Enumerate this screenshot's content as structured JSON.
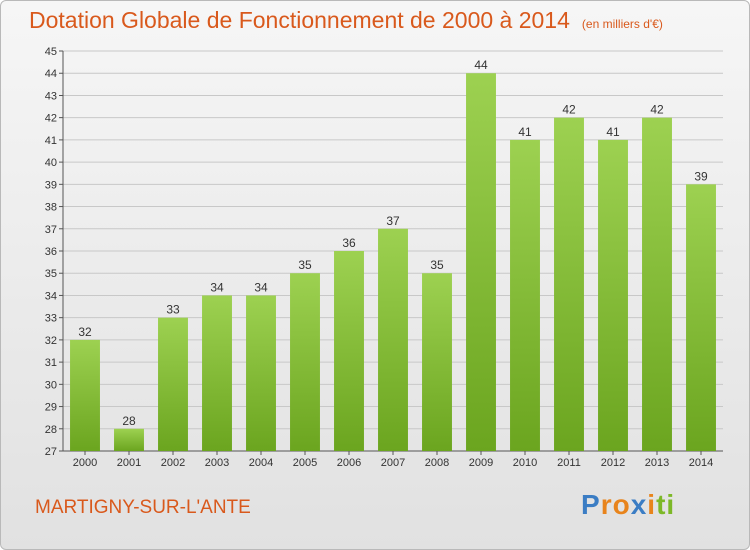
{
  "header": {
    "title": "Dotation Globale de Fonctionnement de 2000 à 2014",
    "unit": "(en milliers d'€)"
  },
  "footer": {
    "commune": "MARTIGNY-SUR-L'ANTE",
    "brand_letters": [
      "P",
      "r",
      "o",
      "x",
      "i",
      "t",
      "i"
    ],
    "brand_colors": [
      "#3b7dc4",
      "#e8841c",
      "#e8841c",
      "#3b7dc4",
      "#e8841c",
      "#7db828",
      "#7db828"
    ]
  },
  "colors": {
    "accent": "#d9591c",
    "bar_light": "#9dd151",
    "bar_dark": "#6ba51f",
    "grid": "#c8c8c8"
  },
  "chart_data": {
    "type": "bar",
    "categories": [
      "2000",
      "2001",
      "2002",
      "2003",
      "2004",
      "2005",
      "2006",
      "2007",
      "2008",
      "2009",
      "2010",
      "2011",
      "2012",
      "2013",
      "2014"
    ],
    "values": [
      32,
      28,
      33,
      34,
      34,
      35,
      36,
      37,
      35,
      44,
      41,
      42,
      41,
      42,
      39
    ],
    "title": "Dotation Globale de Fonctionnement de 2000 à 2014",
    "ylim": [
      27,
      45
    ],
    "yticks": [
      27,
      28,
      29,
      30,
      31,
      32,
      33,
      34,
      35,
      36,
      37,
      38,
      39,
      40,
      41,
      42,
      43,
      44,
      45
    ],
    "grid": true,
    "data_labels": true
  }
}
